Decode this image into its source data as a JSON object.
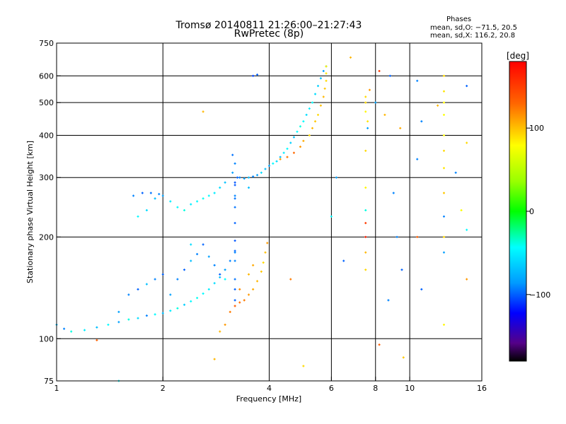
{
  "chart_data": {
    "type": "scatter",
    "title": "Tromsø 20140811 21:26:00–21:27:43",
    "subtitle": "RwPretec (8p)",
    "xlabel": "Frequency [MHz]",
    "ylabel": "Stationary phase Virtual Height [km]",
    "x_scale": "log",
    "y_scale": "log",
    "xlim": [
      1,
      16
    ],
    "ylim": [
      75,
      750
    ],
    "x_ticks": [
      1,
      2,
      4,
      6,
      8,
      10,
      16
    ],
    "x_tick_labels": [
      "1",
      "2",
      "4",
      "6",
      "8",
      "10",
      "16"
    ],
    "y_ticks": [
      75,
      100,
      200,
      300,
      400,
      500,
      600,
      750
    ],
    "y_tick_labels": [
      "75",
      "100",
      "200",
      "300",
      "400",
      "500",
      "600",
      "750"
    ],
    "grid": true,
    "legend": {
      "title": "Phases",
      "lines": [
        "mean, sd,O: −71.5, 20.5",
        "mean, sd,X: 116.2, 20.8"
      ],
      "placement": "top-right"
    },
    "colorbar": {
      "label": "[deg]",
      "range": [
        -180,
        180
      ],
      "ticks": [
        100,
        0,
        -100
      ],
      "tick_labels": [
        "100",
        "0",
        "−100"
      ]
    },
    "series": [
      {
        "trace": "o-mode-lower",
        "points": [
          [
            1.0,
            110
          ],
          [
            1.05,
            107
          ],
          [
            1.1,
            105
          ],
          [
            1.2,
            106
          ],
          [
            1.3,
            108
          ],
          [
            1.4,
            110
          ],
          [
            1.5,
            112
          ],
          [
            1.6,
            114
          ],
          [
            1.7,
            115
          ],
          [
            1.8,
            117
          ],
          [
            1.9,
            118
          ],
          [
            2.0,
            119
          ],
          [
            2.1,
            121
          ],
          [
            2.2,
            123
          ],
          [
            2.3,
            126
          ],
          [
            2.4,
            129
          ],
          [
            2.5,
            132
          ],
          [
            2.6,
            136
          ],
          [
            2.7,
            140
          ],
          [
            2.8,
            146
          ],
          [
            2.9,
            152
          ],
          [
            3.0,
            160
          ],
          [
            3.1,
            170
          ],
          [
            3.2,
            182
          ],
          [
            1.5,
            120
          ],
          [
            1.6,
            135
          ],
          [
            1.7,
            140
          ],
          [
            1.8,
            145
          ],
          [
            1.9,
            150
          ],
          [
            2.0,
            155
          ],
          [
            2.1,
            135
          ],
          [
            2.2,
            150
          ],
          [
            2.3,
            160
          ],
          [
            2.4,
            170
          ],
          [
            2.5,
            178
          ],
          [
            2.6,
            190
          ],
          [
            2.7,
            175
          ],
          [
            2.8,
            165
          ],
          [
            2.9,
            155
          ],
          [
            3.0,
            150
          ]
        ],
        "phase_deg": [
          -90,
          -110,
          -60,
          -75,
          -90,
          -70,
          -100,
          -60,
          -80,
          -110,
          -70,
          -90,
          -75,
          -60,
          -85,
          -70,
          -65,
          -70,
          -75,
          -80,
          -90,
          -100,
          -110,
          -120,
          -100,
          -110,
          -120,
          -90,
          -110,
          -120,
          -100,
          -110,
          -120,
          -90,
          -110,
          -120,
          -100,
          -110,
          -120,
          -70
        ]
      },
      {
        "trace": "x-mode-lower",
        "points": [
          [
            2.9,
            105
          ],
          [
            3.0,
            110
          ],
          [
            3.1,
            120
          ],
          [
            3.2,
            125
          ],
          [
            3.3,
            128
          ],
          [
            3.4,
            130
          ],
          [
            3.5,
            135
          ],
          [
            3.6,
            140
          ],
          [
            3.7,
            148
          ],
          [
            3.8,
            158
          ],
          [
            3.85,
            168
          ],
          [
            3.9,
            180
          ],
          [
            3.95,
            192
          ],
          [
            3.5,
            155
          ],
          [
            3.6,
            165
          ],
          [
            3.3,
            140
          ]
        ],
        "phase_deg": [
          120,
          130,
          140,
          150,
          145,
          140,
          130,
          125,
          120,
          115,
          110,
          118,
          130,
          120,
          125,
          135
        ]
      },
      {
        "trace": "vertical-cusp",
        "points": [
          [
            3.2,
            130
          ],
          [
            3.2,
            150
          ],
          [
            3.2,
            170
          ],
          [
            3.2,
            195
          ],
          [
            3.2,
            220
          ],
          [
            3.2,
            245
          ],
          [
            3.2,
            265
          ],
          [
            3.2,
            285
          ],
          [
            3.15,
            310
          ],
          [
            3.2,
            330
          ],
          [
            3.25,
            300
          ],
          [
            3.2,
            260
          ],
          [
            3.2,
            180
          ],
          [
            3.2,
            140
          ],
          [
            3.2,
            290
          ],
          [
            3.15,
            350
          ]
        ],
        "phase_deg": [
          -120,
          -115,
          -110,
          -125,
          -120,
          -115,
          -110,
          -125,
          -100,
          -110,
          -120,
          -115,
          -110,
          -120,
          -125,
          -115
        ]
      },
      {
        "trace": "o-mode-f2",
        "points": [
          [
            3.3,
            300
          ],
          [
            3.4,
            298
          ],
          [
            3.5,
            300
          ],
          [
            3.6,
            302
          ],
          [
            3.7,
            305
          ],
          [
            3.8,
            310
          ],
          [
            3.9,
            318
          ],
          [
            4.0,
            325
          ],
          [
            4.1,
            330
          ],
          [
            4.2,
            335
          ],
          [
            4.3,
            345
          ],
          [
            4.4,
            355
          ],
          [
            4.5,
            365
          ],
          [
            4.6,
            380
          ],
          [
            4.7,
            395
          ],
          [
            4.8,
            410
          ],
          [
            4.9,
            425
          ],
          [
            5.0,
            440
          ],
          [
            5.1,
            460
          ],
          [
            5.2,
            480
          ],
          [
            5.3,
            500
          ],
          [
            5.4,
            530
          ],
          [
            5.5,
            560
          ],
          [
            5.6,
            590
          ],
          [
            5.7,
            620
          ],
          [
            5.8,
            640
          ],
          [
            3.6,
            600
          ],
          [
            3.7,
            605
          ]
        ],
        "phase_deg": [
          -110,
          -100,
          -90,
          -110,
          -100,
          -80,
          -90,
          -100,
          -70,
          -80,
          -90,
          -75,
          -70,
          -85,
          -90,
          -70,
          -60,
          -70,
          -80,
          -75,
          -70,
          -80,
          -85,
          -90,
          -100,
          -110,
          -130,
          -120
        ]
      },
      {
        "trace": "x-mode-f2",
        "points": [
          [
            4.3,
            340
          ],
          [
            4.5,
            345
          ],
          [
            4.7,
            355
          ],
          [
            4.9,
            370
          ],
          [
            5.0,
            385
          ],
          [
            5.2,
            400
          ],
          [
            5.3,
            420
          ],
          [
            5.4,
            440
          ],
          [
            5.5,
            460
          ],
          [
            5.6,
            490
          ],
          [
            5.7,
            520
          ],
          [
            5.75,
            550
          ],
          [
            5.8,
            580
          ],
          [
            5.8,
            610
          ],
          [
            5.8,
            640
          ]
        ],
        "phase_deg": [
          130,
          140,
          145,
          130,
          125,
          110,
          120,
          115,
          110,
          118,
          120,
          115,
          110,
          105,
          100
        ]
      },
      {
        "trace": "e-sporadic-band",
        "points": [
          [
            1.7,
            230
          ],
          [
            1.8,
            240
          ],
          [
            1.9,
            260
          ],
          [
            2.0,
            265
          ],
          [
            2.1,
            255
          ],
          [
            2.2,
            245
          ],
          [
            2.3,
            240
          ],
          [
            2.4,
            250
          ],
          [
            2.5,
            255
          ],
          [
            2.6,
            260
          ],
          [
            2.7,
            265
          ],
          [
            2.8,
            270
          ],
          [
            2.9,
            280
          ],
          [
            3.0,
            290
          ],
          [
            1.65,
            265
          ],
          [
            1.75,
            270
          ],
          [
            1.85,
            270
          ],
          [
            1.95,
            268
          ]
        ],
        "phase_deg": [
          -70,
          -80,
          -90,
          -100,
          -75,
          -70,
          -60,
          -75,
          -70,
          -65,
          -70,
          -75,
          -80,
          -90,
          -110,
          -120,
          -115,
          -110
        ]
      },
      {
        "trace": "scattered",
        "points": [
          [
            7.5,
            240
          ],
          [
            7.5,
            220
          ],
          [
            7.5,
            200
          ],
          [
            7.5,
            180
          ],
          [
            7.5,
            160
          ],
          [
            7.5,
            280
          ],
          [
            7.5,
            360
          ],
          [
            7.5,
            470
          ],
          [
            7.5,
            500
          ],
          [
            7.6,
            440
          ],
          [
            7.6,
            420
          ],
          [
            7.5,
            520
          ],
          [
            7.7,
            545
          ],
          [
            8.0,
            500
          ],
          [
            8.2,
            96
          ],
          [
            8.5,
            460
          ],
          [
            8.7,
            130
          ],
          [
            8.8,
            600
          ],
          [
            9.2,
            200
          ],
          [
            9.6,
            88
          ],
          [
            9.4,
            420
          ],
          [
            10.5,
            340
          ],
          [
            10.8,
            140
          ],
          [
            12.5,
            600
          ],
          [
            12.5,
            540
          ],
          [
            12.5,
            500
          ],
          [
            12.5,
            460
          ],
          [
            12.5,
            400
          ],
          [
            12.5,
            360
          ],
          [
            12.5,
            320
          ],
          [
            12.5,
            270
          ],
          [
            12.5,
            230
          ],
          [
            12.5,
            200
          ],
          [
            12.5,
            180
          ],
          [
            12.5,
            110
          ],
          [
            10.5,
            200
          ],
          [
            13.5,
            310
          ],
          [
            14.0,
            240
          ],
          [
            14.5,
            210
          ],
          [
            14.5,
            150
          ],
          [
            14.5,
            560
          ],
          [
            14.5,
            380
          ],
          [
            10.5,
            580
          ],
          [
            8.2,
            620
          ],
          [
            6.2,
            300
          ],
          [
            6.5,
            170
          ],
          [
            6.0,
            230
          ],
          [
            5.0,
            83
          ],
          [
            4.6,
            150
          ],
          [
            2.8,
            87
          ],
          [
            1.3,
            99
          ],
          [
            1.5,
            75
          ],
          [
            2.6,
            470
          ],
          [
            2.4,
            190
          ],
          [
            3.5,
            280
          ],
          [
            6.8,
            680
          ],
          [
            9.0,
            270
          ],
          [
            9.5,
            160
          ],
          [
            10.8,
            440
          ],
          [
            12.0,
            490
          ]
        ],
        "phase_deg": [
          -60,
          160,
          170,
          120,
          110,
          100,
          110,
          100,
          110,
          105,
          -100,
          110,
          130,
          -100,
          150,
          120,
          -110,
          -120,
          -110,
          115,
          125,
          -110,
          -120,
          110,
          105,
          100,
          95,
          100,
          110,
          105,
          115,
          -110,
          110,
          -100,
          100,
          150,
          -110,
          95,
          -70,
          130,
          -120,
          110,
          -110,
          160,
          -100,
          -120,
          -70,
          110,
          140,
          120,
          150,
          -70,
          120,
          -80,
          -90,
          120,
          -110,
          -120,
          -110,
          120
        ]
      }
    ]
  }
}
